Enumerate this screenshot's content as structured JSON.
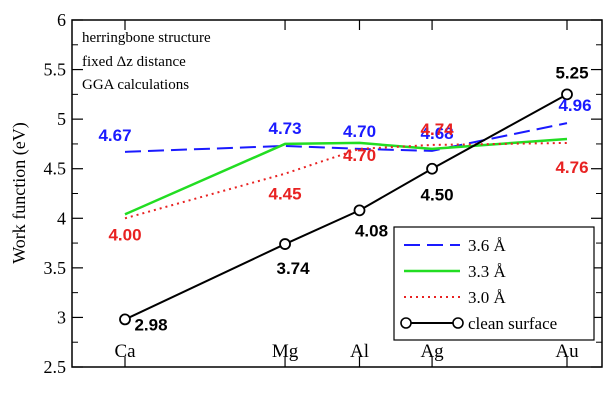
{
  "chart_data": {
    "type": "line",
    "categories": [
      "Ca",
      "Mg",
      "Al",
      "Ag",
      "Au"
    ],
    "x": [
      0,
      1.72,
      2.52,
      3.3,
      4.75
    ],
    "ylabel": "Work function (eV)",
    "xlabel": "",
    "ylim": [
      2.5,
      6
    ],
    "yticks": [
      "2.5",
      "3",
      "3.5",
      "4",
      "4.5",
      "5",
      "5.5",
      "6"
    ],
    "annotation_lines": [
      "herringbone structure",
      "fixed Δz distance",
      "GGA calculations"
    ],
    "legend_position": "bottom-right",
    "series": [
      {
        "name": "3.6 Å",
        "values": [
          4.67,
          4.73,
          4.7,
          4.68,
          4.96
        ],
        "labels": [
          "4.67",
          "4.73",
          "4.70",
          "4.68",
          "4.96"
        ],
        "color": "#1a1aff",
        "style": "dashed"
      },
      {
        "name": "3.3 Å",
        "values": [
          4.04,
          4.75,
          4.76,
          4.7,
          4.8
        ],
        "color": "#22dd22",
        "style": "solid"
      },
      {
        "name": "3.0 Å",
        "values": [
          4.0,
          4.45,
          4.7,
          4.74,
          4.76
        ],
        "labels": [
          "4.00",
          "4.45",
          "4.70",
          "4.74",
          "4.76"
        ],
        "color": "#e82222",
        "style": "dotted"
      },
      {
        "name": "clean surface",
        "values": [
          2.98,
          3.74,
          4.08,
          4.5,
          5.25
        ],
        "labels": [
          "2.98",
          "3.74",
          "4.08",
          "4.50",
          "5.25"
        ],
        "color": "#000000",
        "style": "solid-circles"
      }
    ]
  }
}
